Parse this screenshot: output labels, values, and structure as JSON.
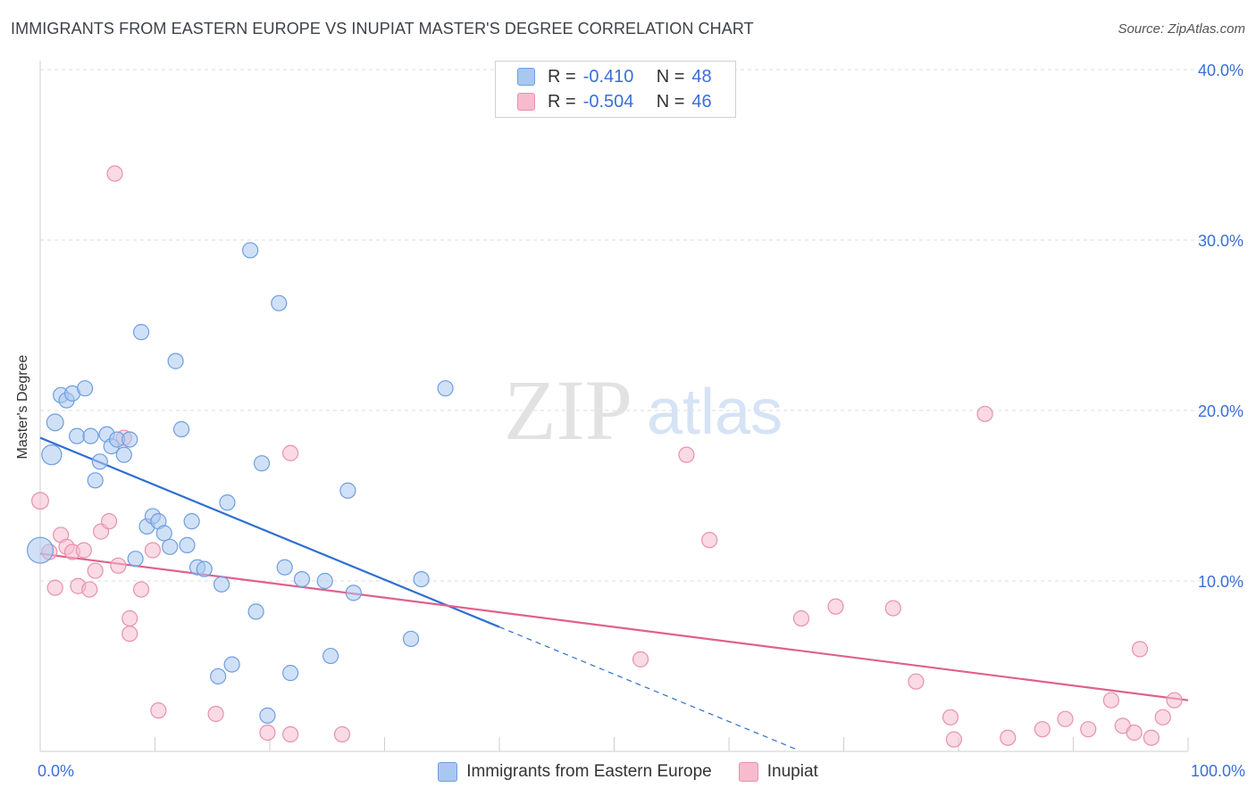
{
  "title": "IMMIGRANTS FROM EASTERN EUROPE VS INUPIAT MASTER'S DEGREE CORRELATION CHART",
  "source": "Source: ZipAtlas.com",
  "watermark": {
    "zip": "ZIP",
    "atlas": "atlas"
  },
  "stats": [
    {
      "r_label": "R =",
      "r_value": "-0.410",
      "n_label": "N =",
      "n_value": "48",
      "color": "#a9c8f0",
      "border": "#6f9ee0"
    },
    {
      "r_label": "R =",
      "r_value": "-0.504",
      "n_label": "N =",
      "n_value": "46",
      "color": "#f6bccd",
      "border": "#e891ad"
    }
  ],
  "legend": [
    {
      "label": "Immigrants from Eastern Europe",
      "color": "#a9c8f0",
      "border": "#6f9ee0"
    },
    {
      "label": "Inupiat",
      "color": "#f6bccd",
      "border": "#e891ad"
    }
  ],
  "chart_data": {
    "type": "scatter",
    "title": "IMMIGRANTS FROM EASTERN EUROPE VS INUPIAT MASTER'S DEGREE CORRELATION CHART",
    "xlabel": "",
    "ylabel": "Master's Degree",
    "xlim": [
      0,
      100
    ],
    "ylim": [
      0,
      40
    ],
    "x_tick_labels": [
      "0.0%",
      "100.0%"
    ],
    "y_ticks": [
      10,
      20,
      30,
      40
    ],
    "y_tick_labels": [
      "10.0%",
      "20.0%",
      "30.0%",
      "40.0%"
    ],
    "grid": true,
    "series": [
      {
        "name": "Immigrants from Eastern Europe",
        "color": "#a9c8f0",
        "stroke": "#6f9ee0",
        "line_color": "#2f6fd0",
        "trend": {
          "x0": 0,
          "y0": 18.4,
          "x1": 40,
          "y1": 7.3,
          "dashed_to_x": 66
        },
        "points": [
          {
            "x": 0,
            "y": 11.8,
            "s": 1.7
          },
          {
            "x": 1,
            "y": 17.4,
            "s": 1.3
          },
          {
            "x": 1.3,
            "y": 19.3,
            "s": 1.1
          },
          {
            "x": 1.8,
            "y": 20.9,
            "s": 1
          },
          {
            "x": 2.3,
            "y": 20.6,
            "s": 1
          },
          {
            "x": 2.8,
            "y": 21
          },
          {
            "x": 3.2,
            "y": 18.5
          },
          {
            "x": 3.9,
            "y": 21.3
          },
          {
            "x": 4.4,
            "y": 18.5
          },
          {
            "x": 4.8,
            "y": 15.9
          },
          {
            "x": 5.2,
            "y": 17
          },
          {
            "x": 5.8,
            "y": 18.6
          },
          {
            "x": 6.2,
            "y": 17.9
          },
          {
            "x": 6.7,
            "y": 18.3
          },
          {
            "x": 7.3,
            "y": 17.4
          },
          {
            "x": 7.8,
            "y": 18.3
          },
          {
            "x": 8.3,
            "y": 11.3
          },
          {
            "x": 8.8,
            "y": 24.6
          },
          {
            "x": 9.3,
            "y": 13.2
          },
          {
            "x": 9.8,
            "y": 13.8
          },
          {
            "x": 10.3,
            "y": 13.5
          },
          {
            "x": 10.8,
            "y": 12.8
          },
          {
            "x": 11.3,
            "y": 12
          },
          {
            "x": 11.8,
            "y": 22.9
          },
          {
            "x": 12.3,
            "y": 18.9
          },
          {
            "x": 12.8,
            "y": 12.1
          },
          {
            "x": 13.2,
            "y": 13.5
          },
          {
            "x": 13.7,
            "y": 10.8
          },
          {
            "x": 14.3,
            "y": 10.7
          },
          {
            "x": 15.8,
            "y": 9.8
          },
          {
            "x": 16.3,
            "y": 14.6
          },
          {
            "x": 16.7,
            "y": 5.1
          },
          {
            "x": 15.5,
            "y": 4.4
          },
          {
            "x": 18.3,
            "y": 29.4
          },
          {
            "x": 18.8,
            "y": 8.2
          },
          {
            "x": 19.3,
            "y": 16.9
          },
          {
            "x": 19.8,
            "y": 2.1
          },
          {
            "x": 20.8,
            "y": 26.3
          },
          {
            "x": 21.3,
            "y": 10.8
          },
          {
            "x": 21.8,
            "y": 4.6
          },
          {
            "x": 22.8,
            "y": 10.1
          },
          {
            "x": 24.8,
            "y": 10
          },
          {
            "x": 25.3,
            "y": 5.6
          },
          {
            "x": 26.8,
            "y": 15.3
          },
          {
            "x": 27.3,
            "y": 9.3
          },
          {
            "x": 32.3,
            "y": 6.6
          },
          {
            "x": 33.2,
            "y": 10.1
          },
          {
            "x": 35.3,
            "y": 21.3
          }
        ]
      },
      {
        "name": "Inupiat",
        "color": "#f6bccd",
        "stroke": "#e891ad",
        "line_color": "#e0608e",
        "trend": {
          "x0": 0,
          "y0": 11.6,
          "x1": 100,
          "y1": 3
        },
        "points": [
          {
            "x": 0,
            "y": 14.7,
            "s": 1.1
          },
          {
            "x": 0.8,
            "y": 11.7
          },
          {
            "x": 1.3,
            "y": 9.6
          },
          {
            "x": 1.8,
            "y": 12.7
          },
          {
            "x": 2.3,
            "y": 12
          },
          {
            "x": 2.8,
            "y": 11.7
          },
          {
            "x": 3.3,
            "y": 9.7
          },
          {
            "x": 3.8,
            "y": 11.8
          },
          {
            "x": 4.3,
            "y": 9.5
          },
          {
            "x": 4.8,
            "y": 10.6
          },
          {
            "x": 5.3,
            "y": 12.9
          },
          {
            "x": 6,
            "y": 13.5
          },
          {
            "x": 6.5,
            "y": 33.9
          },
          {
            "x": 6.8,
            "y": 10.9
          },
          {
            "x": 7.3,
            "y": 18.4
          },
          {
            "x": 7.8,
            "y": 7.8
          },
          {
            "x": 7.8,
            "y": 6.9
          },
          {
            "x": 8.8,
            "y": 9.5
          },
          {
            "x": 9.8,
            "y": 11.8
          },
          {
            "x": 10.3,
            "y": 2.4
          },
          {
            "x": 15.3,
            "y": 2.2
          },
          {
            "x": 19.8,
            "y": 1.1
          },
          {
            "x": 21.8,
            "y": 1
          },
          {
            "x": 21.8,
            "y": 17.5
          },
          {
            "x": 26.3,
            "y": 1
          },
          {
            "x": 52.3,
            "y": 5.4
          },
          {
            "x": 56.3,
            "y": 17.4
          },
          {
            "x": 58.3,
            "y": 12.4
          },
          {
            "x": 66.3,
            "y": 7.8
          },
          {
            "x": 69.3,
            "y": 8.5
          },
          {
            "x": 74.3,
            "y": 8.4
          },
          {
            "x": 76.3,
            "y": 4.1
          },
          {
            "x": 79.3,
            "y": 2
          },
          {
            "x": 79.6,
            "y": 0.7
          },
          {
            "x": 82.3,
            "y": 19.8
          },
          {
            "x": 84.3,
            "y": 0.8
          },
          {
            "x": 87.3,
            "y": 1.3
          },
          {
            "x": 89.3,
            "y": 1.9
          },
          {
            "x": 91.3,
            "y": 1.3
          },
          {
            "x": 93.3,
            "y": 3
          },
          {
            "x": 94.3,
            "y": 1.5
          },
          {
            "x": 95.3,
            "y": 1.1
          },
          {
            "x": 95.8,
            "y": 6
          },
          {
            "x": 96.8,
            "y": 0.8
          },
          {
            "x": 97.8,
            "y": 2
          },
          {
            "x": 98.8,
            "y": 3
          }
        ]
      }
    ]
  }
}
